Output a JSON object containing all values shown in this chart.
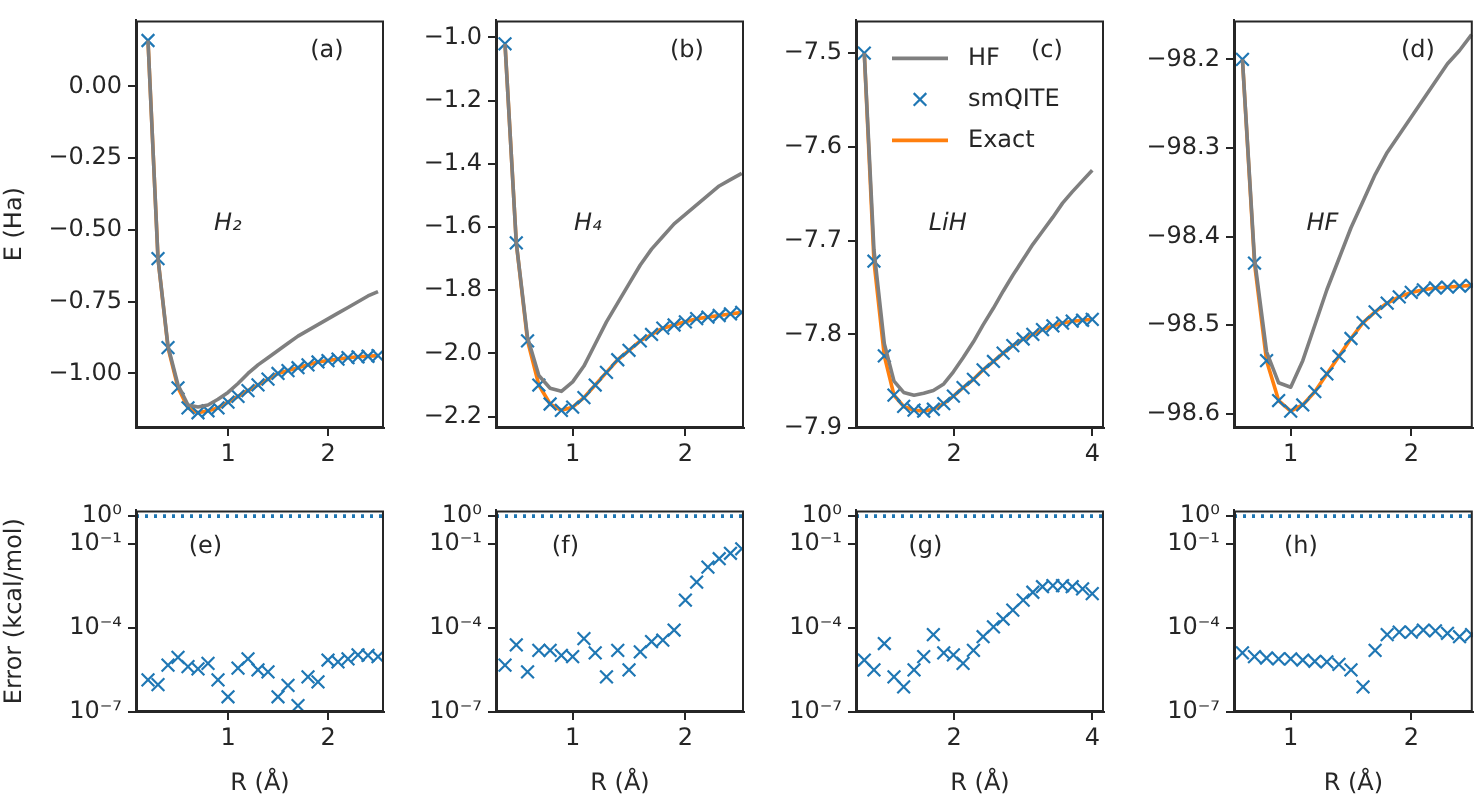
{
  "chart_data": [
    {
      "type": "line",
      "annotations": [
        "(a)",
        "H₂"
      ],
      "ylabel": "E (Ha)",
      "xlim": [
        0.08,
        2.56
      ],
      "xticks": [
        1,
        2
      ],
      "ylim": [
        -1.19,
        0.23
      ],
      "yticks": [
        {
          "value": 0,
          "label": "0.00"
        },
        {
          "value": -0.25,
          "label": "−0.25"
        },
        {
          "value": -0.5,
          "label": "−0.50"
        },
        {
          "value": -0.75,
          "label": "−0.75"
        },
        {
          "value": -1,
          "label": "−1.00"
        }
      ],
      "series": [
        {
          "type": "line",
          "color": "#7f7f7f",
          "x": [
            0.2,
            0.3,
            0.4,
            0.5,
            0.6,
            0.7,
            0.8,
            0.9,
            1.0,
            1.1,
            1.2,
            1.3,
            1.4,
            1.5,
            1.6,
            1.7,
            1.8,
            1.9,
            2.0,
            2.1,
            2.2,
            2.3,
            2.4,
            2.5
          ],
          "values": [
            0.16,
            -0.6,
            -0.905,
            -1.04,
            -1.11,
            -1.117,
            -1.11,
            -1.09,
            -1.066,
            -1.035,
            -1.0,
            -0.97,
            -0.945,
            -0.92,
            -0.895,
            -0.87,
            -0.85,
            -0.83,
            -0.81,
            -0.79,
            -0.77,
            -0.75,
            -0.73,
            -0.715
          ]
        },
        {
          "type": "scatter",
          "marker": "cross",
          "color": "#1f77b4",
          "x": [
            0.2,
            0.3,
            0.4,
            0.5,
            0.6,
            0.7,
            0.8,
            0.9,
            1.0,
            1.1,
            1.2,
            1.3,
            1.4,
            1.5,
            1.6,
            1.7,
            1.8,
            1.9,
            2.0,
            2.1,
            2.2,
            2.3,
            2.4,
            2.5
          ],
          "values": [
            0.16,
            -0.6,
            -0.91,
            -1.05,
            -1.12,
            -1.137,
            -1.13,
            -1.12,
            -1.1,
            -1.08,
            -1.06,
            -1.04,
            -1.02,
            -1.0,
            -0.99,
            -0.98,
            -0.97,
            -0.96,
            -0.955,
            -0.95,
            -0.945,
            -0.942,
            -0.94,
            -0.938
          ]
        },
        {
          "type": "line",
          "color": "#ff7f0e",
          "x": [
            0.2,
            0.3,
            0.4,
            0.5,
            0.6,
            0.7,
            0.8,
            0.9,
            1.0,
            1.1,
            1.2,
            1.3,
            1.4,
            1.5,
            1.6,
            1.7,
            1.8,
            1.9,
            2.0,
            2.1,
            2.2,
            2.3,
            2.4,
            2.5
          ],
          "values": [
            0.16,
            -0.6,
            -0.91,
            -1.05,
            -1.12,
            -1.137,
            -1.13,
            -1.12,
            -1.1,
            -1.08,
            -1.06,
            -1.04,
            -1.02,
            -1.0,
            -0.99,
            -0.98,
            -0.97,
            -0.96,
            -0.955,
            -0.95,
            -0.945,
            -0.942,
            -0.94,
            -0.938
          ]
        }
      ]
    },
    {
      "type": "line",
      "annotations": [
        "(b)",
        "H₄"
      ],
      "xlim": [
        0.32,
        2.52
      ],
      "xticks": [
        1,
        2
      ],
      "ylim": [
        -2.236,
        -0.946
      ],
      "yticks": [
        {
          "value": -1,
          "label": "−1.0"
        },
        {
          "value": -1.2,
          "label": "−1.2"
        },
        {
          "value": -1.4,
          "label": "−1.4"
        },
        {
          "value": -1.6,
          "label": "−1.6"
        },
        {
          "value": -1.8,
          "label": "−1.8"
        },
        {
          "value": -2,
          "label": "−2.0"
        },
        {
          "value": -2.2,
          "label": "−2.2"
        }
      ],
      "series": [
        {
          "type": "line",
          "color": "#7f7f7f",
          "x": [
            0.4,
            0.5,
            0.6,
            0.7,
            0.8,
            0.9,
            1.0,
            1.1,
            1.2,
            1.3,
            1.4,
            1.5,
            1.6,
            1.7,
            1.8,
            1.9,
            2.0,
            2.1,
            2.2,
            2.3,
            2.4,
            2.5
          ],
          "values": [
            -1.02,
            -1.65,
            -1.95,
            -2.07,
            -2.11,
            -2.12,
            -2.09,
            -2.04,
            -1.97,
            -1.9,
            -1.84,
            -1.78,
            -1.72,
            -1.67,
            -1.63,
            -1.59,
            -1.56,
            -1.53,
            -1.5,
            -1.47,
            -1.45,
            -1.43
          ]
        },
        {
          "type": "scatter",
          "marker": "cross",
          "color": "#1f77b4",
          "x": [
            0.4,
            0.5,
            0.6,
            0.7,
            0.8,
            0.9,
            1.0,
            1.1,
            1.2,
            1.3,
            1.4,
            1.5,
            1.6,
            1.7,
            1.8,
            1.9,
            2.0,
            2.1,
            2.2,
            2.3,
            2.4,
            2.5
          ],
          "values": [
            -1.02,
            -1.65,
            -1.96,
            -2.1,
            -2.16,
            -2.18,
            -2.17,
            -2.14,
            -2.1,
            -2.06,
            -2.02,
            -1.99,
            -1.96,
            -1.94,
            -1.92,
            -1.91,
            -1.9,
            -1.89,
            -1.885,
            -1.88,
            -1.875,
            -1.87
          ]
        },
        {
          "type": "line",
          "color": "#ff7f0e",
          "x": [
            0.4,
            0.5,
            0.6,
            0.7,
            0.8,
            0.9,
            1.0,
            1.1,
            1.2,
            1.3,
            1.4,
            1.5,
            1.6,
            1.7,
            1.8,
            1.9,
            2.0,
            2.1,
            2.2,
            2.3,
            2.4,
            2.5
          ],
          "values": [
            -1.02,
            -1.65,
            -1.96,
            -2.1,
            -2.16,
            -2.18,
            -2.17,
            -2.14,
            -2.1,
            -2.06,
            -2.02,
            -1.99,
            -1.96,
            -1.94,
            -1.92,
            -1.91,
            -1.9,
            -1.89,
            -1.885,
            -1.88,
            -1.875,
            -1.87
          ]
        }
      ]
    },
    {
      "type": "line",
      "annotations": [
        "(c)",
        "LiH"
      ],
      "legend": "top left",
      "xlim": [
        0.58,
        4.17
      ],
      "xticks": [
        2,
        4
      ],
      "ylim": [
        -7.9,
        -7.465
      ],
      "yticks": [
        {
          "value": -7.5,
          "label": "−7.5"
        },
        {
          "value": -7.6,
          "label": "−7.6"
        },
        {
          "value": -7.7,
          "label": "−7.7"
        },
        {
          "value": -7.8,
          "label": "−7.8"
        },
        {
          "value": -7.9,
          "label": "−7.9"
        }
      ],
      "series": [
        {
          "type": "line",
          "name": "HF",
          "color": "#7f7f7f",
          "x": [
            0.7,
            0.84,
            0.99,
            1.13,
            1.27,
            1.42,
            1.56,
            1.7,
            1.85,
            1.99,
            2.13,
            2.28,
            2.42,
            2.57,
            2.71,
            2.85,
            3.0,
            3.14,
            3.28,
            3.43,
            3.57,
            3.71,
            3.86,
            4.0
          ],
          "values": [
            -7.5,
            -7.71,
            -7.81,
            -7.85,
            -7.862,
            -7.865,
            -7.863,
            -7.86,
            -7.853,
            -7.84,
            -7.825,
            -7.808,
            -7.79,
            -7.772,
            -7.754,
            -7.737,
            -7.72,
            -7.704,
            -7.69,
            -7.675,
            -7.66,
            -7.648,
            -7.636,
            -7.625
          ]
        },
        {
          "type": "scatter",
          "name": "smQITE",
          "marker": "cross",
          "color": "#1f77b4",
          "x": [
            0.7,
            0.84,
            0.99,
            1.13,
            1.27,
            1.42,
            1.56,
            1.7,
            1.85,
            1.99,
            2.13,
            2.28,
            2.42,
            2.57,
            2.71,
            2.85,
            3.0,
            3.14,
            3.28,
            3.43,
            3.57,
            3.71,
            3.86,
            4.0
          ],
          "values": [
            -7.5,
            -7.722,
            -7.823,
            -7.865,
            -7.877,
            -7.881,
            -7.882,
            -7.88,
            -7.874,
            -7.866,
            -7.857,
            -7.848,
            -7.838,
            -7.829,
            -7.82,
            -7.812,
            -7.805,
            -7.8,
            -7.795,
            -7.791,
            -7.788,
            -7.786,
            -7.785,
            -7.784
          ]
        },
        {
          "type": "line",
          "name": "Exact",
          "color": "#ff7f0e",
          "x": [
            0.7,
            0.84,
            0.99,
            1.13,
            1.27,
            1.42,
            1.56,
            1.7,
            1.85,
            1.99,
            2.13,
            2.28,
            2.42,
            2.57,
            2.71,
            2.85,
            3.0,
            3.14,
            3.28,
            3.43,
            3.57,
            3.71,
            3.86,
            4.0
          ],
          "values": [
            -7.5,
            -7.722,
            -7.823,
            -7.865,
            -7.877,
            -7.881,
            -7.882,
            -7.88,
            -7.874,
            -7.866,
            -7.857,
            -7.848,
            -7.838,
            -7.829,
            -7.82,
            -7.812,
            -7.805,
            -7.8,
            -7.795,
            -7.791,
            -7.788,
            -7.786,
            -7.785,
            -7.784
          ]
        }
      ]
    },
    {
      "type": "line",
      "annotations": [
        "(d)",
        "HF"
      ],
      "xlim": [
        0.53,
        2.51
      ],
      "xticks": [
        1,
        2
      ],
      "ylim": [
        -98.616,
        -98.156
      ],
      "yticks": [
        {
          "value": -98.2,
          "label": "−98.2"
        },
        {
          "value": -98.3,
          "label": "−98.3"
        },
        {
          "value": -98.4,
          "label": "−98.4"
        },
        {
          "value": -98.5,
          "label": "−98.5"
        },
        {
          "value": -98.6,
          "label": "−98.6"
        }
      ],
      "series": [
        {
          "type": "line",
          "color": "#7f7f7f",
          "x": [
            0.6,
            0.7,
            0.8,
            0.9,
            1.0,
            1.1,
            1.2,
            1.3,
            1.4,
            1.5,
            1.6,
            1.7,
            1.8,
            1.9,
            2.0,
            2.1,
            2.2,
            2.3,
            2.4,
            2.5
          ],
          "values": [
            -98.2,
            -98.425,
            -98.53,
            -98.565,
            -98.57,
            -98.54,
            -98.5,
            -98.46,
            -98.425,
            -98.39,
            -98.36,
            -98.33,
            -98.305,
            -98.285,
            -98.265,
            -98.245,
            -98.225,
            -98.205,
            -98.19,
            -98.172
          ]
        },
        {
          "type": "scatter",
          "marker": "cross",
          "color": "#1f77b4",
          "x": [
            0.6,
            0.7,
            0.8,
            0.9,
            1.0,
            1.1,
            1.2,
            1.3,
            1.4,
            1.5,
            1.6,
            1.7,
            1.8,
            1.9,
            2.0,
            2.1,
            2.2,
            2.3,
            2.4,
            2.5
          ],
          "values": [
            -98.2,
            -98.43,
            -98.54,
            -98.585,
            -98.597,
            -98.59,
            -98.575,
            -98.555,
            -98.535,
            -98.515,
            -98.497,
            -98.485,
            -98.475,
            -98.468,
            -98.463,
            -98.46,
            -98.458,
            -98.457,
            -98.456,
            -98.455
          ]
        },
        {
          "type": "line",
          "color": "#ff7f0e",
          "x": [
            0.6,
            0.7,
            0.8,
            0.9,
            1.0,
            1.1,
            1.2,
            1.3,
            1.4,
            1.5,
            1.6,
            1.7,
            1.8,
            1.9,
            2.0,
            2.1,
            2.2,
            2.3,
            2.4,
            2.5
          ],
          "values": [
            -98.2,
            -98.43,
            -98.54,
            -98.585,
            -98.597,
            -98.59,
            -98.575,
            -98.555,
            -98.535,
            -98.515,
            -98.497,
            -98.485,
            -98.475,
            -98.468,
            -98.463,
            -98.46,
            -98.458,
            -98.457,
            -98.456,
            -98.455
          ]
        }
      ]
    },
    {
      "type": "scatter",
      "marker": "cross",
      "log": "y",
      "annotations": [
        "(e)"
      ],
      "ylabel": "Error (kcal/mol)",
      "xlabel": "R (Å)",
      "xlim": [
        0.08,
        2.56
      ],
      "xticks": [
        1,
        2
      ],
      "ylim": [
        1e-07,
        1.6
      ],
      "yticks": [
        {
          "value": 1e-07,
          "label": "10⁻⁷"
        },
        {
          "value": 0.0001,
          "label": "10⁻⁴"
        },
        {
          "value": 0.1,
          "label": "10⁻¹"
        },
        {
          "value": 1,
          "label": "10⁰"
        }
      ],
      "ref_lines": [
        {
          "axis": "y",
          "value": 1,
          "color": "#1f77b4",
          "line_style": "dotted"
        }
      ],
      "series": [
        {
          "color": "#1f77b4",
          "x": [
            0.2,
            0.3,
            0.4,
            0.5,
            0.6,
            0.7,
            0.8,
            0.9,
            1.0,
            1.1,
            1.2,
            1.3,
            1.4,
            1.5,
            1.6,
            1.7,
            1.8,
            1.9,
            2.0,
            2.1,
            2.2,
            2.3,
            2.4,
            2.5
          ],
          "values": [
            1.4e-06,
            9.5e-07,
            4.7e-06,
            8.9e-06,
            4.2e-06,
            3.5e-06,
            5.5e-06,
            1.4e-06,
            3.5e-07,
            3.7e-06,
            7.9e-06,
            3.2e-06,
            2.7e-06,
            3.5e-07,
            8.9e-07,
            1.7e-07,
            1.8e-06,
            1.2e-06,
            7.2e-06,
            6.2e-06,
            7.9e-06,
            1.1e-05,
            1.05e-05,
            9.5e-06
          ]
        }
      ]
    },
    {
      "type": "scatter",
      "marker": "cross",
      "log": "y",
      "annotations": [
        "(f)"
      ],
      "xlabel": "R (Å)",
      "xlim": [
        0.32,
        2.52
      ],
      "xticks": [
        1,
        2
      ],
      "ylim": [
        1e-07,
        1.6
      ],
      "yticks": [
        {
          "value": 1e-07,
          "label": "10⁻⁷"
        },
        {
          "value": 0.0001,
          "label": "10⁻⁴"
        },
        {
          "value": 0.1,
          "label": "10⁻¹"
        },
        {
          "value": 1,
          "label": "10⁰"
        }
      ],
      "ref_lines": [
        {
          "axis": "y",
          "value": 1,
          "color": "#1f77b4",
          "line_style": "dotted"
        }
      ],
      "series": [
        {
          "color": "#1f77b4",
          "x": [
            0.4,
            0.5,
            0.6,
            0.7,
            0.8,
            0.9,
            1.0,
            1.1,
            1.2,
            1.3,
            1.4,
            1.5,
            1.6,
            1.7,
            1.8,
            1.9,
            2.0,
            2.1,
            2.2,
            2.3,
            2.4,
            2.5
          ],
          "values": [
            4.7e-06,
            2.5e-05,
            2.7e-06,
            1.6e-05,
            1.6e-05,
            1.05e-05,
            9.5e-06,
            4.2e-05,
            1.3e-05,
            1.8e-06,
            1.6e-05,
            3.2e-06,
            1.4e-05,
            3.3e-05,
            3.7e-05,
            8.5e-05,
            0.001,
            0.0044,
            0.015,
            0.03,
            0.047,
            0.068
          ]
        }
      ]
    },
    {
      "type": "scatter",
      "marker": "cross",
      "log": "y",
      "annotations": [
        "(g)"
      ],
      "xlabel": "R (Å)",
      "xlim": [
        0.58,
        4.17
      ],
      "xticks": [
        2,
        4
      ],
      "ylim": [
        1e-07,
        1.6
      ],
      "yticks": [
        {
          "value": 1e-07,
          "label": "10⁻⁷"
        },
        {
          "value": 0.0001,
          "label": "10⁻⁴"
        },
        {
          "value": 0.1,
          "label": "10⁻¹"
        },
        {
          "value": 1,
          "label": "10⁰"
        }
      ],
      "ref_lines": [
        {
          "axis": "y",
          "value": 1,
          "color": "#1f77b4",
          "line_style": "dotted"
        }
      ],
      "series": [
        {
          "color": "#1f77b4",
          "x": [
            0.7,
            0.84,
            0.99,
            1.13,
            1.27,
            1.42,
            1.56,
            1.7,
            1.85,
            1.99,
            2.13,
            2.28,
            2.42,
            2.57,
            2.71,
            2.85,
            3.0,
            3.14,
            3.28,
            3.43,
            3.57,
            3.71,
            3.86,
            4.0
          ],
          "values": [
            7.2e-06,
            3.2e-06,
            2.8e-05,
            1.8e-06,
            7.9e-07,
            3.2e-06,
            9.5e-06,
            5.8e-05,
            1.3e-05,
            1.1e-05,
            5.5e-06,
            1.6e-05,
            4.9e-05,
            0.00011,
            0.00021,
            0.00044,
            0.001,
            0.0019,
            0.003,
            0.0033,
            0.0033,
            0.003,
            0.0025,
            0.0017
          ]
        }
      ]
    },
    {
      "type": "scatter",
      "marker": "cross",
      "log": "y",
      "annotations": [
        "(h)"
      ],
      "xlabel": "R (Å)",
      "xlim": [
        0.53,
        2.51
      ],
      "xticks": [
        1,
        2
      ],
      "ylim": [
        1e-07,
        1.6
      ],
      "yticks": [
        {
          "value": 1e-07,
          "label": "10⁻⁷"
        },
        {
          "value": 0.0001,
          "label": "10⁻⁴"
        },
        {
          "value": 0.1,
          "label": "10⁻¹"
        },
        {
          "value": 1,
          "label": "10⁰"
        }
      ],
      "ref_lines": [
        {
          "axis": "y",
          "value": 1,
          "color": "#1f77b4",
          "line_style": "dotted"
        }
      ],
      "series": [
        {
          "color": "#1f77b4",
          "x": [
            0.6,
            0.7,
            0.8,
            0.9,
            1.0,
            1.1,
            1.2,
            1.3,
            1.4,
            1.5,
            1.6,
            1.7,
            1.8,
            1.9,
            2.0,
            2.1,
            2.2,
            2.3,
            2.4,
            2.5
          ],
          "values": [
            1.3e-05,
            9.5e-06,
            8.5e-06,
            7.9e-06,
            7.9e-06,
            7.2e-06,
            6.5e-06,
            6.2e-06,
            5e-06,
            3.2e-06,
            7.9e-07,
            1.6e-05,
            5.8e-05,
            7.2e-05,
            7.2e-05,
            8.5e-05,
            7.9e-05,
            6.5e-05,
            4.9e-05,
            5.8e-05
          ]
        }
      ]
    }
  ]
}
